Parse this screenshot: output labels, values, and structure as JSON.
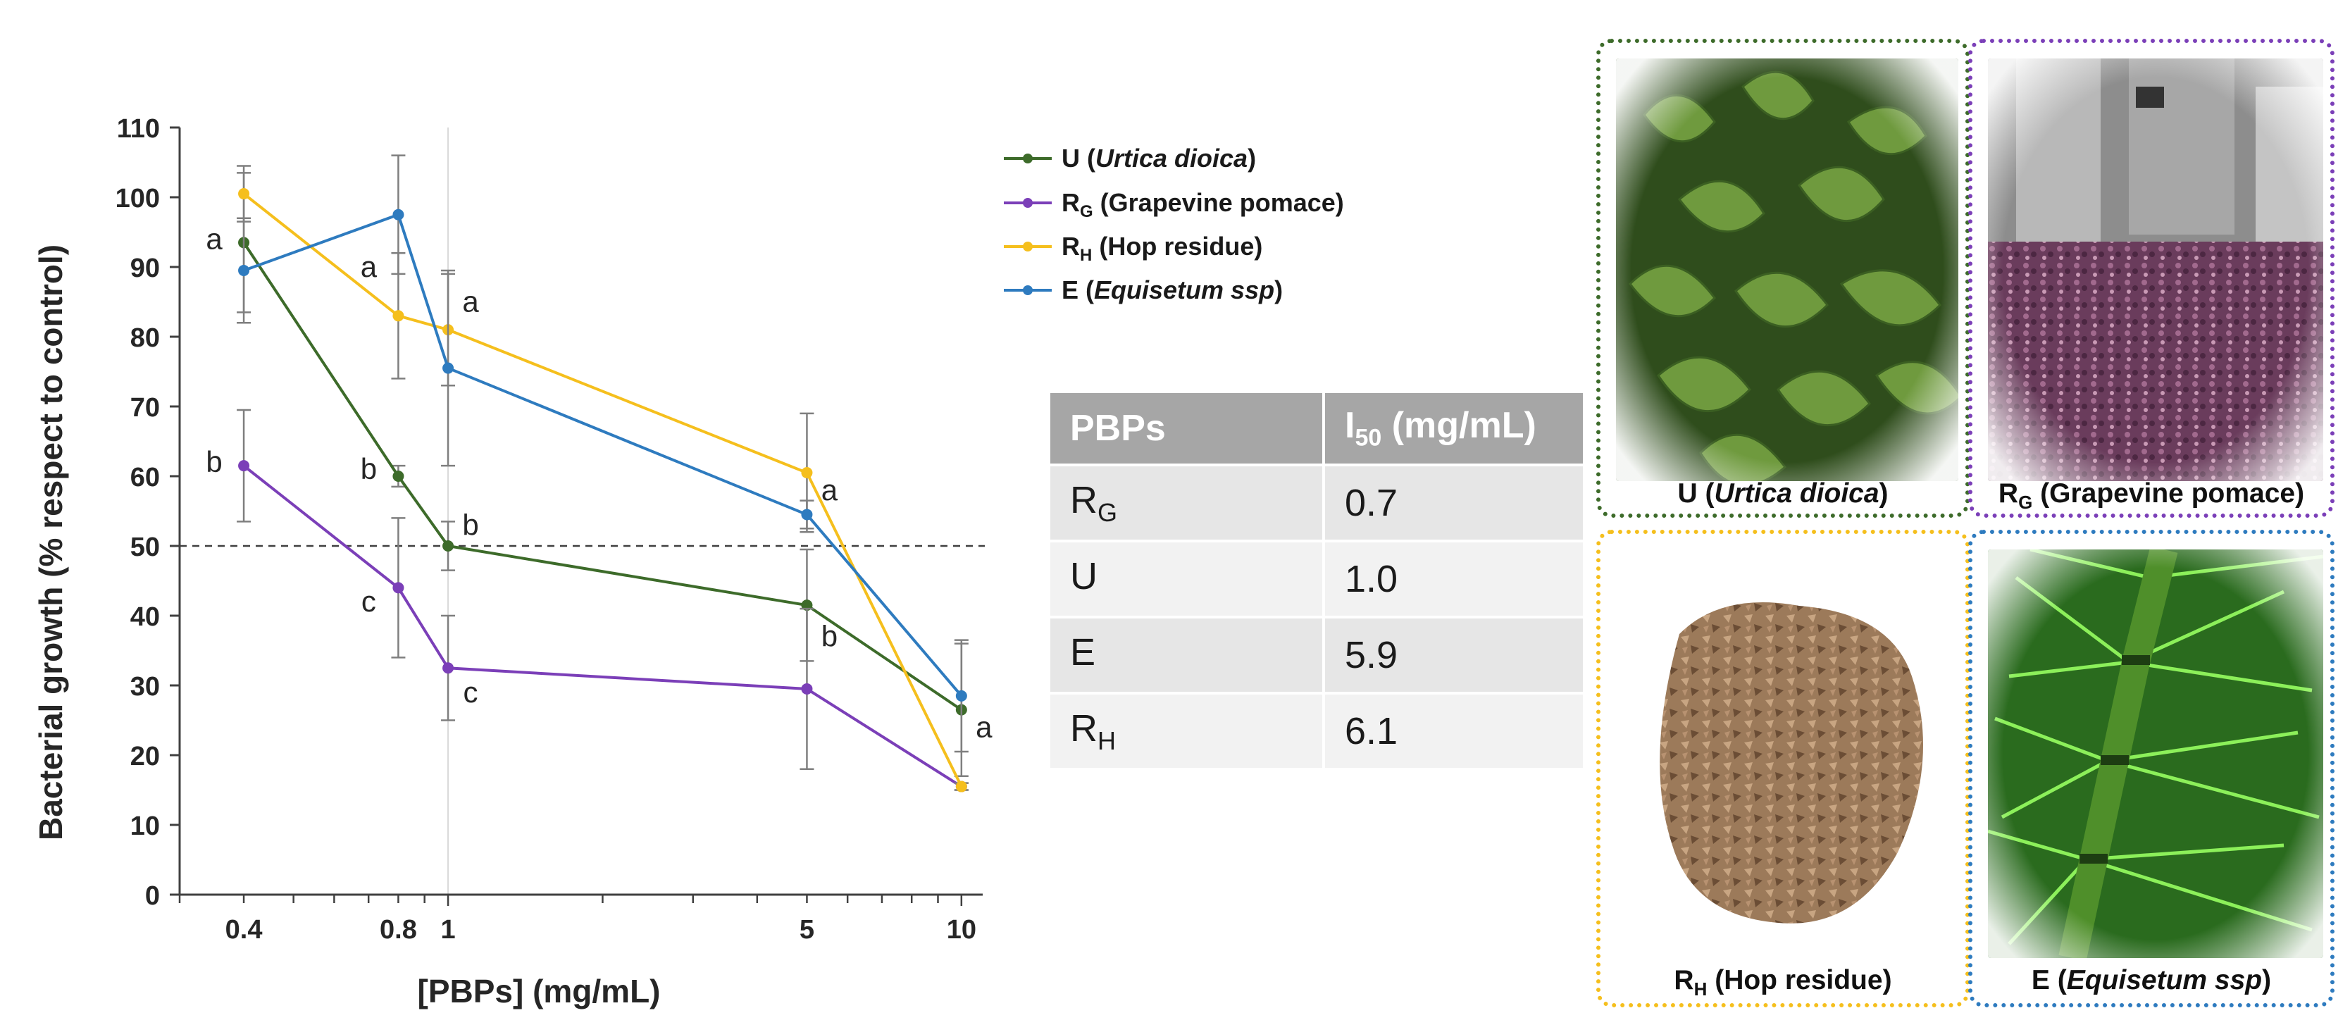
{
  "chart_data": {
    "type": "line",
    "xscale": "log",
    "xlabel": "[PBPs] (mg/mL)",
    "ylabel": "Bacterial growth (% respect to control)",
    "ylim": [
      0,
      110
    ],
    "yticks": [
      "0",
      "10",
      "20",
      "30",
      "40",
      "50",
      "60",
      "70",
      "80",
      "90",
      "100",
      "110"
    ],
    "xticks": [
      "0.4",
      "0.8",
      "1",
      "5",
      "10"
    ],
    "x": [
      0.4,
      0.8,
      1,
      5,
      10
    ],
    "reference_line": 50,
    "series": [
      {
        "name": "U",
        "legend_label": "U (Urtica dioica)",
        "legend_prefix": "U (",
        "legend_italic": "Urtica dioica",
        "legend_suffix": ")",
        "color": "#3d6b2a",
        "values": [
          93.5,
          60,
          50,
          41.5,
          26.5
        ],
        "errors": [
          10,
          1.5,
          3.5,
          8,
          9.5
        ]
      },
      {
        "name": "RG",
        "legend_label": "RG (Grapevine pomace)",
        "legend_main": "R",
        "legend_sub": "G",
        "legend_rest": " (Grapevine pomace)",
        "color": "#7b3fb8",
        "values": [
          61.5,
          44,
          32.5,
          29.5,
          15.5
        ],
        "errors": [
          8,
          10,
          7.5,
          11.5,
          0.5
        ]
      },
      {
        "name": "RH",
        "legend_label": "RH (Hop residue)",
        "legend_main": "R",
        "legend_sub": "H",
        "legend_rest": " (Hop residue)",
        "color": "#f5bf1d",
        "values": [
          100.5,
          83,
          81,
          60.5,
          15.5
        ],
        "errors": [
          4,
          9,
          8,
          8.5,
          0.5
        ]
      },
      {
        "name": "E",
        "legend_label": "E (Equisetum ssp)",
        "legend_prefix": "E (",
        "legend_italic": "Equisetum ssp",
        "legend_suffix": ")",
        "color": "#2e7bbf",
        "values": [
          89.5,
          97.5,
          75.5,
          54.5,
          28.5
        ],
        "errors": [
          7.5,
          8.5,
          14,
          2,
          8
        ]
      }
    ],
    "annotations": [
      {
        "text": "a",
        "x": 0.4,
        "y": 94,
        "side": "left"
      },
      {
        "text": "b",
        "x": 0.4,
        "y": 62,
        "side": "left"
      },
      {
        "text": "a",
        "x": 0.8,
        "y": 90,
        "side": "left"
      },
      {
        "text": "b",
        "x": 0.8,
        "y": 61,
        "side": "left"
      },
      {
        "text": "c",
        "x": 0.8,
        "y": 42,
        "side": "left"
      },
      {
        "text": "a",
        "x": 1,
        "y": 85,
        "side": "right"
      },
      {
        "text": "b",
        "x": 1,
        "y": 53,
        "side": "right"
      },
      {
        "text": "c",
        "x": 1,
        "y": 29,
        "side": "right"
      },
      {
        "text": "a",
        "x": 5,
        "y": 58,
        "side": "right"
      },
      {
        "text": "b",
        "x": 5,
        "y": 37,
        "side": "right"
      },
      {
        "text": "a",
        "x": 10,
        "y": 24,
        "side": "right"
      }
    ]
  },
  "table": {
    "header_col1": "PBPs",
    "header_col2_main": "I",
    "header_col2_sub": "50",
    "header_col2_rest": " (mg/mL)",
    "rows": [
      {
        "main": "R",
        "sub": "G",
        "value": "0.7"
      },
      {
        "main": "U",
        "sub": "",
        "value": "1.0"
      },
      {
        "main": "E",
        "sub": "",
        "value": "5.9"
      },
      {
        "main": "R",
        "sub": "H",
        "value": "6.1"
      }
    ]
  },
  "panels": [
    {
      "caption_prefix": "U (",
      "caption_italic": "Urtica dioica",
      "caption_suffix": ")",
      "border_color": "#3d6b2a"
    },
    {
      "caption_main": "R",
      "caption_sub": "G",
      "caption_rest": " (Grapevine pomace)",
      "border_color": "#7b3fb8"
    },
    {
      "caption_main": "R",
      "caption_sub": "H",
      "caption_rest": " (Hop residue)",
      "border_color": "#f5bf1d"
    },
    {
      "caption_prefix": "E (",
      "caption_italic": "Equisetum ssp",
      "caption_suffix": ")",
      "border_color": "#2e7bbf"
    }
  ]
}
